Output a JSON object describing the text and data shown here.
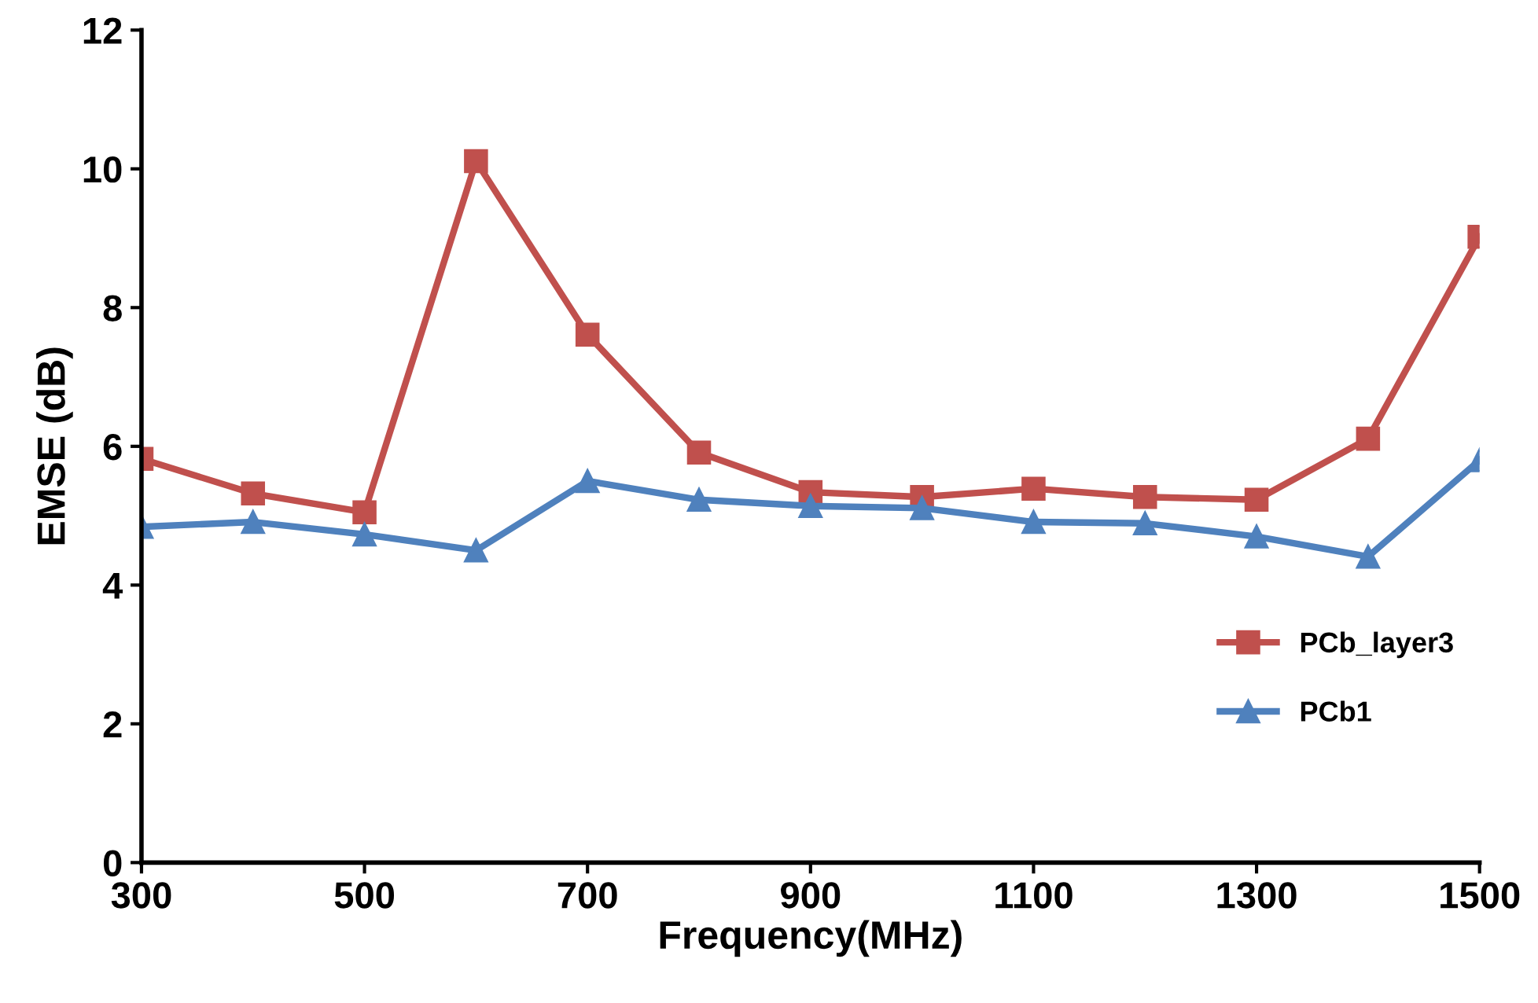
{
  "chart_data": {
    "type": "line",
    "xlabel": "Frequency(MHz)",
    "ylabel": "EMSE (dB)",
    "x": [
      300,
      400,
      500,
      600,
      700,
      800,
      900,
      1000,
      1100,
      1200,
      1300,
      1400,
      1500
    ],
    "series": [
      {
        "name": "PCb_layer3",
        "color": "#c0504d",
        "marker": "square",
        "values": [
          5.82,
          5.32,
          5.05,
          10.11,
          7.61,
          5.91,
          5.34,
          5.27,
          5.39,
          5.27,
          5.23,
          6.11,
          9.02
        ]
      },
      {
        "name": "PCb1",
        "color": "#4f81bd",
        "marker": "triangle",
        "values": [
          4.84,
          4.91,
          4.73,
          4.5,
          5.5,
          5.23,
          5.14,
          5.11,
          4.91,
          4.89,
          4.7,
          4.41,
          5.8
        ]
      }
    ],
    "xlim": [
      300,
      1500
    ],
    "xticks": [
      300,
      500,
      700,
      900,
      1100,
      1300,
      1500
    ],
    "ylim": [
      0,
      12
    ],
    "yticks": [
      0,
      2,
      4,
      6,
      8,
      10,
      12
    ],
    "grid": false,
    "legend": "right",
    "line_style": "solid"
  }
}
